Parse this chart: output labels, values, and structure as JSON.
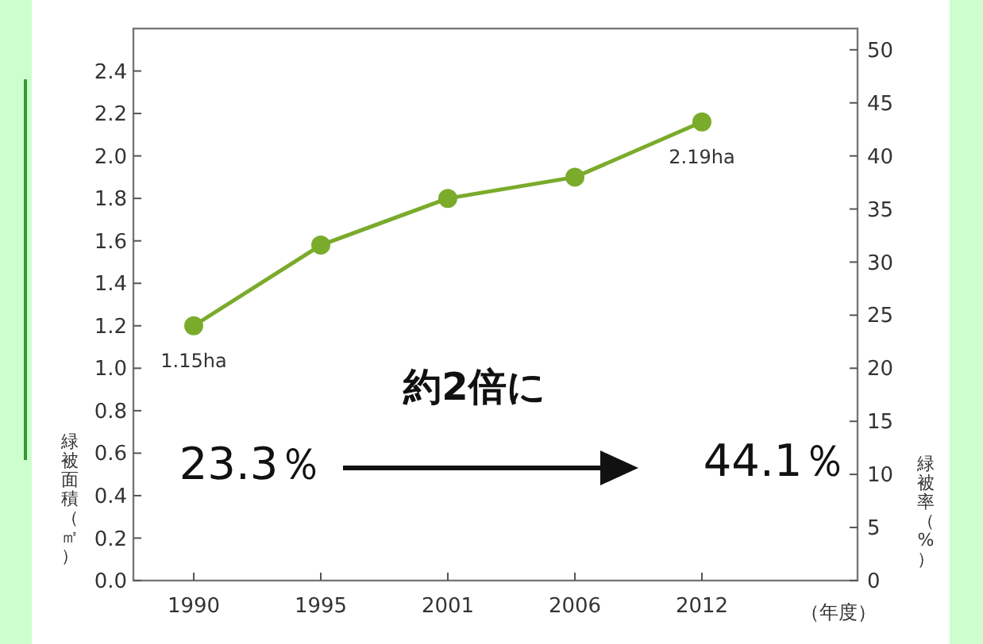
{
  "chart_data": {
    "type": "line",
    "categories": [
      "1990",
      "1995",
      "2001",
      "2006",
      "2012"
    ],
    "series": [
      {
        "color": "#7aab2b",
        "values": [
          1.2,
          1.58,
          1.8,
          1.9,
          2.16
        ]
      }
    ],
    "ylim": [
      0,
      2.6
    ],
    "yticks": [
      {
        "value": 0,
        "label": "0.0"
      },
      {
        "value": 0.2,
        "label": "0.2"
      },
      {
        "value": 0.4,
        "label": "0.4"
      },
      {
        "value": 0.6,
        "label": "0.6"
      },
      {
        "value": 0.8,
        "label": "0.8"
      },
      {
        "value": 1,
        "label": "1.0"
      },
      {
        "value": 1.2,
        "label": "1.2"
      },
      {
        "value": 1.4,
        "label": "1.4"
      },
      {
        "value": 1.6,
        "label": "1.6"
      },
      {
        "value": 1.8,
        "label": "1.8"
      },
      {
        "value": 2,
        "label": "2.0"
      },
      {
        "value": 2.2,
        "label": "2.2"
      },
      {
        "value": 2.4,
        "label": "2.4"
      }
    ],
    "y2lim": [
      0,
      52
    ],
    "y2ticks": [
      0,
      5,
      10,
      15,
      20,
      25,
      30,
      35,
      40,
      45,
      50
    ],
    "xlabel": "（年度）",
    "ylabel": "緑被面積（㎡）",
    "y2label": "緑被率（%）",
    "marker": "circle",
    "grid": false,
    "annotations": [
      {
        "text": "1.15ha",
        "x": "1990",
        "y": 1.2
      },
      {
        "text": "2.19ha",
        "x": "2012",
        "y": 2.16
      },
      "約2倍に",
      "23.3％",
      "44.1％"
    ]
  }
}
